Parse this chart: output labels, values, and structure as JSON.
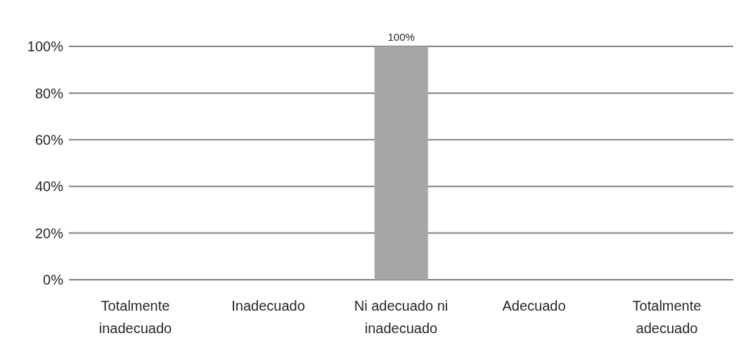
{
  "chart_data": {
    "type": "bar",
    "categories": [
      "Totalmente inadecuado",
      "Inadecuado",
      "Ni adecuado ni inadecuado",
      "Adecuado",
      "Totalmente adecuado"
    ],
    "values": [
      0,
      0,
      100,
      0,
      0
    ],
    "colors": [
      "#4a78a8",
      "#b85c24",
      "#a6a6a6",
      "#c89600",
      "#0b5494"
    ],
    "value_labels": [
      null,
      null,
      "100%",
      null,
      null
    ],
    "ylim": [
      0,
      100
    ],
    "yticks": [
      {
        "value": 0,
        "label": "0%"
      },
      {
        "value": 20,
        "label": "20%"
      },
      {
        "value": 40,
        "label": "40%"
      },
      {
        "value": 60,
        "label": "60%"
      },
      {
        "value": 80,
        "label": "80%"
      },
      {
        "value": 100,
        "label": "100%"
      }
    ],
    "grid": "y"
  }
}
